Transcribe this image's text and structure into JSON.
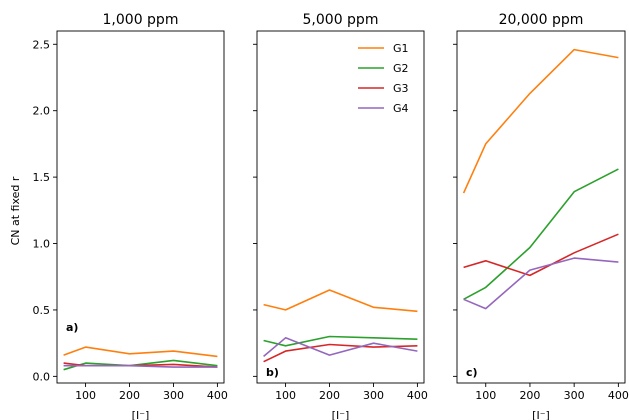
{
  "chart_data": {
    "type": "line",
    "ylabel": "CN at fixed r",
    "xlabel": "[I⁻]",
    "sharey": true,
    "ylim": [
      -0.05,
      2.6
    ],
    "yticks": [
      0.0,
      0.5,
      1.0,
      1.5,
      2.0,
      2.5
    ],
    "ytick_labels": [
      "0.0",
      "0.5",
      "1.0",
      "1.5",
      "2.0",
      "2.5"
    ],
    "xlim": [
      35,
      415
    ],
    "xticks": [
      100,
      200,
      300,
      400
    ],
    "xtick_labels": [
      "100",
      "200",
      "300",
      "400"
    ],
    "x": [
      50,
      100,
      200,
      300,
      400
    ],
    "legend": {
      "panel": 1,
      "position": "upper right"
    },
    "colors": {
      "G1": "#ff7f0e",
      "G2": "#2ca02c",
      "G3": "#d62728",
      "G4": "#9467bd"
    },
    "panels": [
      {
        "title": "1,000 ppm",
        "label": "a)",
        "series": [
          {
            "name": "G1",
            "values": [
              0.16,
              0.22,
              0.17,
              0.19,
              0.15
            ]
          },
          {
            "name": "G2",
            "values": [
              0.05,
              0.1,
              0.08,
              0.12,
              0.08
            ]
          },
          {
            "name": "G3",
            "values": [
              0.1,
              0.08,
              0.08,
              0.09,
              0.07
            ]
          },
          {
            "name": "G4",
            "values": [
              0.08,
              0.08,
              0.08,
              0.07,
              0.07
            ]
          }
        ]
      },
      {
        "title": "5,000 ppm",
        "label": "b)",
        "series": [
          {
            "name": "G1",
            "values": [
              0.54,
              0.5,
              0.65,
              0.52,
              0.49
            ]
          },
          {
            "name": "G2",
            "values": [
              0.27,
              0.23,
              0.3,
              0.29,
              0.28
            ]
          },
          {
            "name": "G3",
            "values": [
              0.11,
              0.19,
              0.24,
              0.22,
              0.23
            ]
          },
          {
            "name": "G4",
            "values": [
              0.15,
              0.29,
              0.16,
              0.25,
              0.19
            ]
          }
        ]
      },
      {
        "title": "20,000 ppm",
        "label": "c)",
        "series": [
          {
            "name": "G1",
            "values": [
              1.38,
              1.75,
              2.13,
              2.46,
              2.4
            ]
          },
          {
            "name": "G2",
            "values": [
              0.58,
              0.67,
              0.97,
              1.39,
              1.56
            ]
          },
          {
            "name": "G3",
            "values": [
              0.82,
              0.87,
              0.76,
              0.93,
              1.07
            ]
          },
          {
            "name": "G4",
            "values": [
              0.58,
              0.51,
              0.8,
              0.89,
              0.86
            ]
          }
        ]
      }
    ]
  }
}
